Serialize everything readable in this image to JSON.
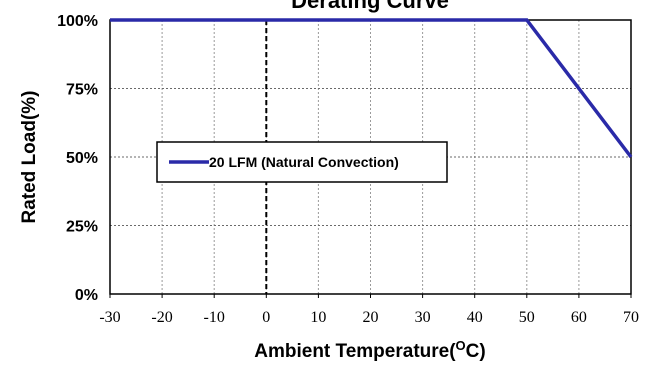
{
  "chart_data": {
    "type": "line",
    "title": "Derating Curve",
    "xlabel": "Ambient Temperature(",
    "xlabel_degree": "O",
    "xlabel_unit": "C)",
    "ylabel": "Rated  Load(%)",
    "xlim": [
      -30,
      70
    ],
    "ylim": [
      0,
      100
    ],
    "x_ticks": [
      -30,
      -20,
      -10,
      0,
      10,
      20,
      30,
      40,
      50,
      60,
      70
    ],
    "y_ticks": [
      0,
      25,
      50,
      75,
      100
    ],
    "y_tick_labels": [
      "0%",
      "25%",
      "50%",
      "75%",
      "100%"
    ],
    "grid": true,
    "reference_line_x": 0,
    "legend_position": "center-left",
    "series": [
      {
        "name": "20 LFM (Natural Convection)",
        "color": "#2a2aa8",
        "x": [
          -30,
          50,
          70
        ],
        "y": [
          100,
          100,
          50
        ]
      }
    ]
  }
}
